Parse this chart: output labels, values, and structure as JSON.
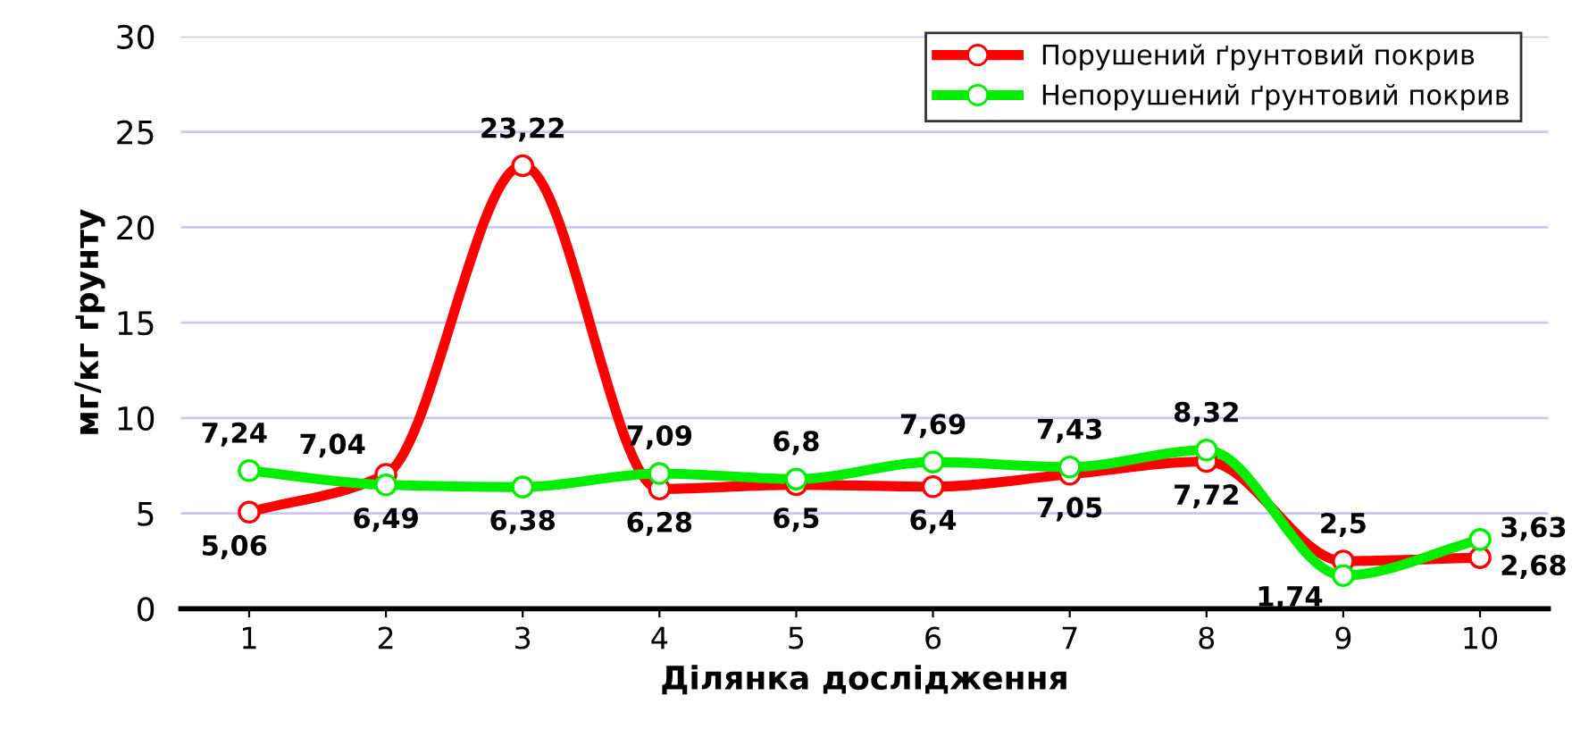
{
  "chart_data": {
    "type": "line",
    "xlabel": "Ділянка дослідження",
    "ylabel": "мг/кг ґрунту",
    "categories": [
      "1",
      "2",
      "3",
      "4",
      "5",
      "6",
      "7",
      "8",
      "9",
      "10"
    ],
    "series": [
      {
        "name": "Порушений ґрунтовий покрив",
        "color": "#ff0000",
        "values": [
          5.06,
          7.04,
          23.22,
          6.28,
          6.5,
          6.4,
          7.05,
          7.72,
          2.5,
          2.68
        ],
        "value_labels": [
          "5,06",
          "7,04",
          "23,22",
          "6,28",
          "6,5",
          "6,4",
          "7,05",
          "7,72",
          "2,5",
          "2,68"
        ]
      },
      {
        "name": "Непорушений ґрунтовий покрив",
        "color": "#00ee00",
        "values": [
          7.24,
          6.49,
          6.38,
          7.09,
          6.8,
          7.69,
          7.43,
          8.32,
          1.74,
          3.63
        ],
        "value_labels": [
          "7,24",
          "6,49",
          "6,38",
          "7,09",
          "6,8",
          "7,69",
          "7,43",
          "8,32",
          "1,74",
          "3,63"
        ]
      }
    ],
    "ylim": [
      0,
      30
    ],
    "yticks": [
      0,
      5,
      10,
      15,
      20,
      25,
      30
    ],
    "grid": "y",
    "legend": "top right",
    "marker": "circle",
    "line_style": "solid"
  }
}
